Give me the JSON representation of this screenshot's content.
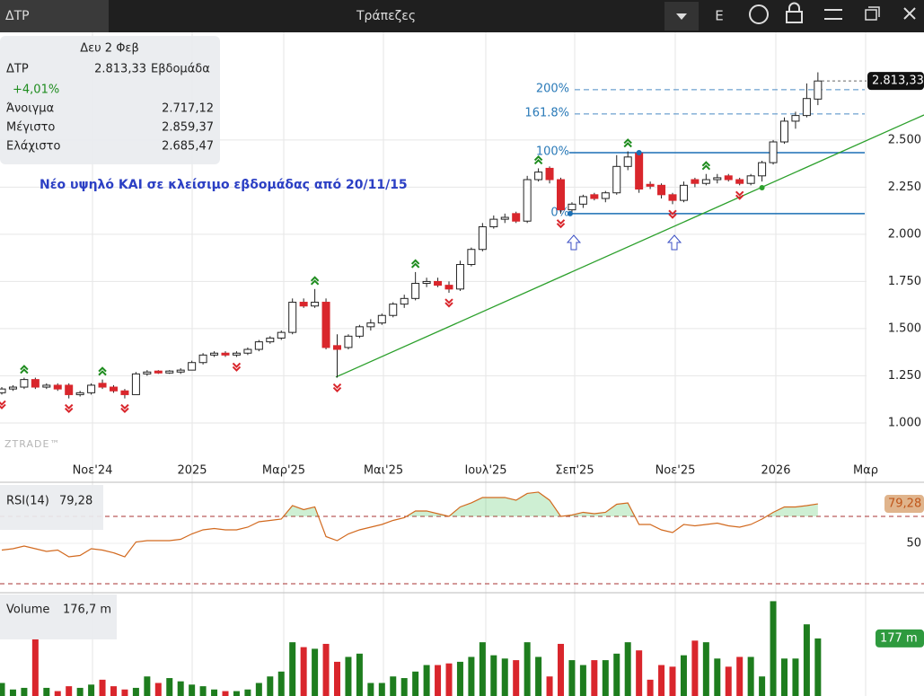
{
  "topbar": {
    "tab": "ΔΤΡ",
    "title": "Τράπεζες",
    "menu_letter": "E"
  },
  "info": {
    "date": "Δευ 2 Φεβ",
    "symbol": "ΔΤΡ",
    "price": "2.813,33",
    "period": "Εβδομάδα",
    "change": "+4,01%",
    "rows": [
      [
        "Άνοιγμα",
        "2.717,12"
      ],
      [
        "Μέγιστο",
        "2.859,37"
      ],
      [
        "Ελάχιστο",
        "2.685,47"
      ]
    ]
  },
  "chart_data": [
    {
      "type": "candlestick",
      "annotation": "Νέο υψηλό ΚΑΙ σε κλείσιμο εβδομάδας από 20/11/15",
      "watermark": "ZTRADE™",
      "x_labels": [
        "Νοε'24",
        "2025",
        "Μαρ'25",
        "Μαι'25",
        "Ιουλ'25",
        "Σεπ'25",
        "Νοε'25",
        "2026",
        "Μαρ"
      ],
      "open": [
        1.16,
        1.18,
        1.19,
        1.23,
        1.19,
        1.2,
        1.2,
        1.15,
        1.16,
        1.21,
        1.19,
        1.17,
        1.15,
        1.26,
        1.275,
        1.265,
        1.27,
        1.28,
        1.32,
        1.36,
        1.37,
        1.36,
        1.37,
        1.39,
        1.43,
        1.45,
        1.48,
        1.64,
        1.62,
        1.64,
        1.41,
        1.4,
        1.46,
        1.51,
        1.53,
        1.57,
        1.63,
        1.66,
        1.74,
        1.75,
        1.73,
        1.71,
        1.84,
        1.92,
        2.04,
        2.08,
        2.11,
        2.07,
        2.29,
        2.35,
        2.29,
        2.13,
        2.16,
        2.21,
        2.19,
        2.22,
        2.36,
        2.43,
        2.265,
        2.26,
        2.21,
        2.18,
        2.29,
        2.27,
        2.29,
        2.31,
        2.29,
        2.27,
        2.31,
        2.38,
        2.49,
        2.6,
        2.63,
        2.717
      ],
      "high": [
        1.19,
        1.2,
        1.24,
        1.24,
        1.21,
        1.21,
        1.21,
        1.17,
        1.21,
        1.23,
        1.2,
        1.18,
        1.27,
        1.28,
        1.28,
        1.28,
        1.29,
        1.33,
        1.37,
        1.38,
        1.38,
        1.38,
        1.4,
        1.44,
        1.46,
        1.49,
        1.66,
        1.66,
        1.71,
        1.66,
        1.47,
        1.47,
        1.52,
        1.55,
        1.58,
        1.64,
        1.68,
        1.8,
        1.77,
        1.77,
        1.75,
        1.86,
        1.93,
        2.06,
        2.1,
        2.11,
        2.12,
        2.31,
        2.35,
        2.36,
        2.3,
        2.17,
        2.21,
        2.22,
        2.23,
        2.42,
        2.44,
        2.44,
        2.28,
        2.27,
        2.22,
        2.28,
        2.3,
        2.32,
        2.32,
        2.32,
        2.3,
        2.32,
        2.39,
        2.5,
        2.62,
        2.65,
        2.8,
        2.859
      ],
      "low": [
        1.15,
        1.17,
        1.18,
        1.18,
        1.18,
        1.17,
        1.13,
        1.14,
        1.15,
        1.18,
        1.16,
        1.13,
        1.15,
        1.25,
        1.26,
        1.26,
        1.26,
        1.28,
        1.31,
        1.35,
        1.35,
        1.35,
        1.36,
        1.38,
        1.42,
        1.44,
        1.47,
        1.61,
        1.61,
        1.39,
        1.24,
        1.39,
        1.45,
        1.49,
        1.52,
        1.56,
        1.61,
        1.65,
        1.72,
        1.72,
        1.69,
        1.7,
        1.83,
        1.91,
        2.03,
        2.06,
        2.06,
        2.06,
        2.28,
        2.27,
        2.11,
        2.11,
        2.14,
        2.18,
        2.17,
        2.21,
        2.34,
        2.22,
        2.24,
        2.19,
        2.16,
        2.17,
        2.25,
        2.26,
        2.27,
        2.28,
        2.26,
        2.26,
        2.28,
        2.37,
        2.48,
        2.56,
        2.62,
        2.685
      ],
      "close": [
        1.18,
        1.19,
        1.23,
        1.19,
        1.2,
        1.18,
        1.15,
        1.16,
        1.2,
        1.19,
        1.17,
        1.15,
        1.26,
        1.27,
        1.265,
        1.275,
        1.28,
        1.32,
        1.36,
        1.37,
        1.36,
        1.37,
        1.39,
        1.43,
        1.45,
        1.48,
        1.64,
        1.62,
        1.64,
        1.4,
        1.39,
        1.46,
        1.51,
        1.53,
        1.57,
        1.63,
        1.66,
        1.74,
        1.75,
        1.73,
        1.71,
        1.84,
        1.92,
        2.04,
        2.08,
        2.09,
        2.07,
        2.29,
        2.33,
        2.29,
        2.13,
        2.16,
        2.2,
        2.19,
        2.22,
        2.36,
        2.41,
        2.24,
        2.255,
        2.21,
        2.18,
        2.26,
        2.27,
        2.29,
        2.3,
        2.29,
        2.27,
        2.31,
        2.38,
        2.49,
        2.6,
        2.63,
        2.72,
        2.813
      ],
      "up_color": "#ffffff",
      "down_color": "#d9262c",
      "ylim": [
        0.814,
        3.071
      ],
      "yticks": [
        {
          "value": 1,
          "label": "1.000"
        },
        {
          "value": 1.25,
          "label": "1.250"
        },
        {
          "value": 1.5,
          "label": "1.500"
        },
        {
          "value": 1.75,
          "label": "1.750"
        },
        {
          "value": 2,
          "label": "2.000"
        },
        {
          "value": 2.25,
          "label": "2.250"
        },
        {
          "value": 2.5,
          "label": "2.500"
        }
      ],
      "last_price": {
        "value": 2.81333,
        "label": "2.813,33"
      },
      "fib": [
        {
          "label": "200%",
          "value": 2.767
        },
        {
          "label": "161.8%",
          "value": 2.638
        },
        {
          "label": "100%",
          "value": 2.433
        },
        {
          "label": "0%",
          "value": 2.11
        }
      ],
      "trendline": {
        "color": "#2ca02c",
        "values": [
          1.243,
          2.633
        ]
      }
    },
    {
      "type": "line",
      "name": "RSI(14)",
      "last_label": "79,28",
      "color": "#d2691e",
      "values": [
        45,
        46,
        48,
        46,
        44,
        45,
        40,
        41,
        46,
        45,
        43,
        40,
        51,
        52,
        52,
        52,
        53,
        57,
        60,
        61,
        60,
        60,
        62,
        66,
        67,
        68,
        78,
        75,
        77,
        55,
        52,
        57,
        60,
        62,
        64,
        67,
        69,
        74,
        74,
        72,
        70,
        77,
        80,
        84,
        84,
        84,
        82,
        87,
        88,
        82,
        70,
        71,
        73,
        72,
        73,
        79,
        80,
        64,
        64,
        60,
        58,
        64,
        63,
        64,
        65,
        63,
        62,
        64,
        68,
        73,
        77,
        77,
        78,
        79.28
      ],
      "ylim": [
        16.7,
        95.3
      ],
      "yticks": [
        50
      ],
      "levels": [
        70,
        20
      ]
    },
    {
      "type": "bar",
      "name": "Volume",
      "last_label": "176,7 m",
      "tag_label": "177 m",
      "up_color": "#1e7d1e",
      "down_color": "#d9262c",
      "values": [
        40,
        20,
        25,
        175,
        25,
        15,
        30,
        25,
        35,
        50,
        30,
        20,
        25,
        60,
        40,
        55,
        45,
        35,
        30,
        20,
        15,
        15,
        20,
        40,
        60,
        75,
        165,
        150,
        145,
        160,
        105,
        120,
        130,
        40,
        40,
        60,
        55,
        75,
        95,
        95,
        100,
        105,
        120,
        165,
        125,
        115,
        110,
        165,
        120,
        60,
        160,
        110,
        95,
        110,
        110,
        130,
        165,
        140,
        50,
        95,
        90,
        125,
        170,
        165,
        115,
        90,
        120,
        120,
        60,
        291,
        115,
        115,
        220,
        176.7
      ],
      "ylim": [
        0,
        317
      ]
    }
  ]
}
